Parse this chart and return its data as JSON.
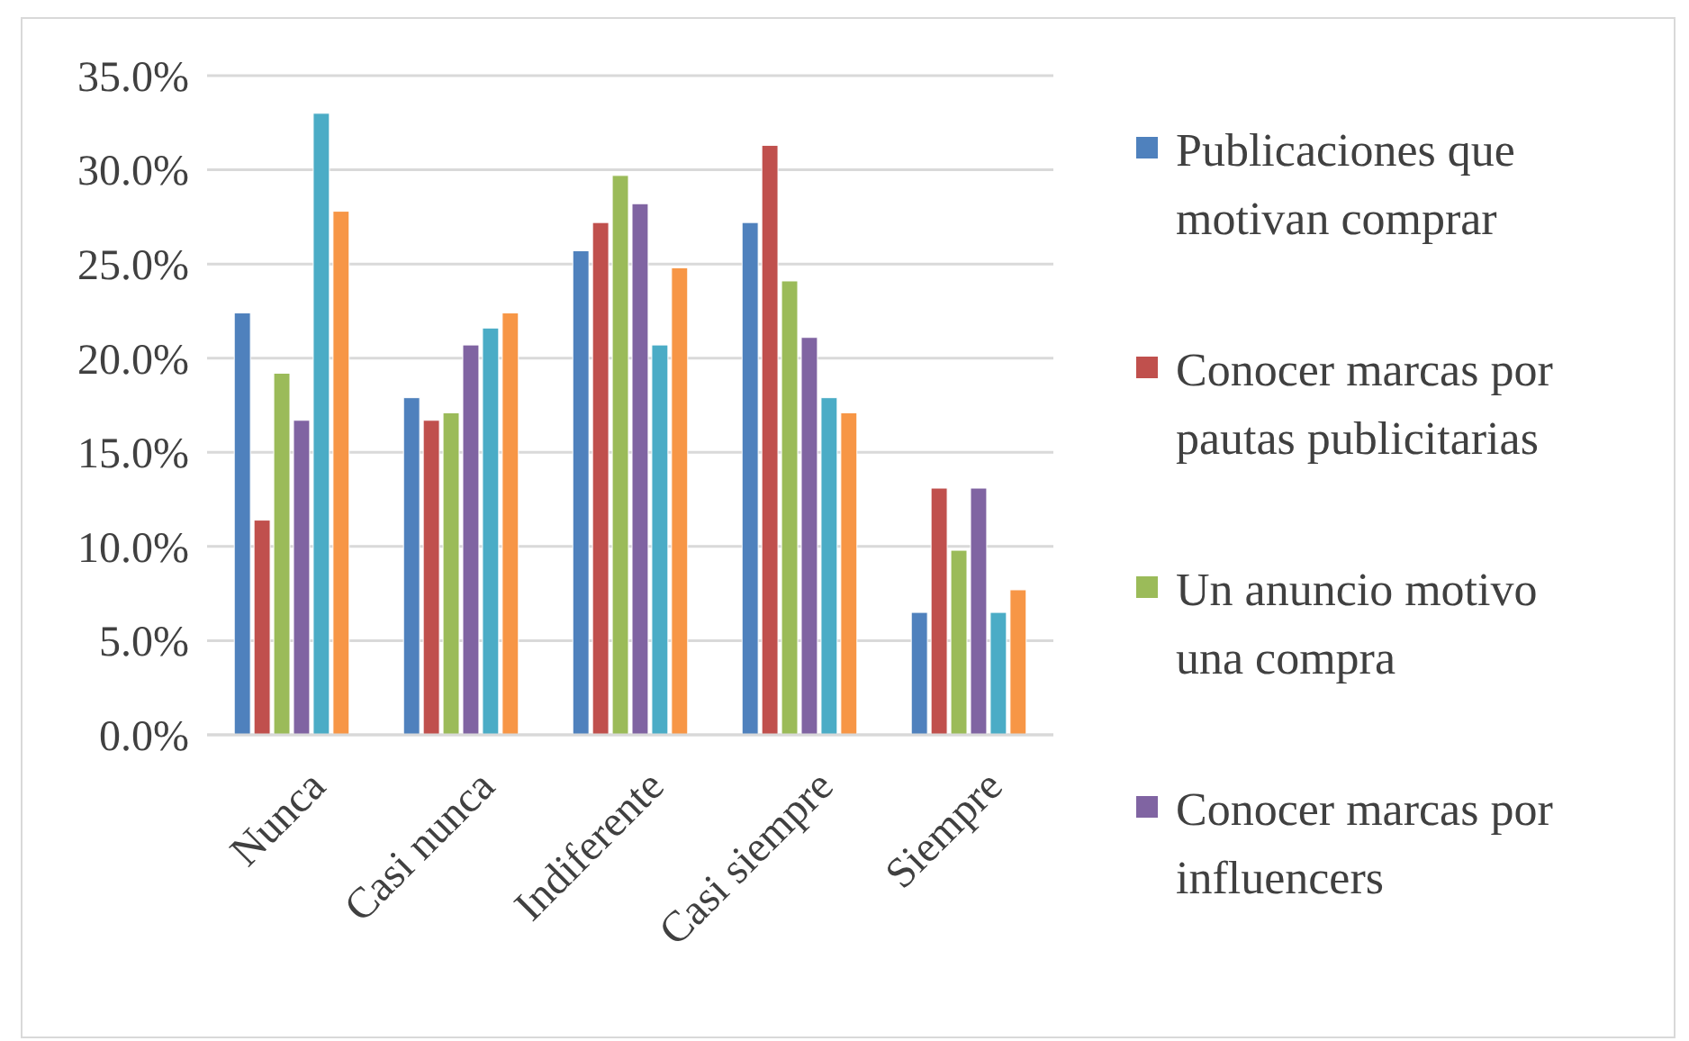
{
  "chart_data": {
    "type": "bar",
    "categories": [
      "Nunca",
      "Casi nunca",
      "Indiferente",
      "Casi siempre",
      "Siempre"
    ],
    "series": [
      {
        "name": "Publicaciones que motivan comprar",
        "color": "#4f81bd",
        "values": [
          22.4,
          17.9,
          25.7,
          27.2,
          6.5
        ]
      },
      {
        "name": "Conocer marcas por pautas publicitarias",
        "color": "#c0504d",
        "values": [
          11.4,
          16.7,
          27.2,
          31.3,
          13.1
        ]
      },
      {
        "name": "Un anuncio motivo una compra",
        "color": "#9bbb59",
        "values": [
          19.2,
          17.1,
          29.7,
          24.1,
          9.8
        ]
      },
      {
        "name": "Conocer marcas por influencers",
        "color": "#8064a2",
        "values": [
          16.7,
          20.7,
          28.2,
          21.1,
          13.1
        ]
      },
      {
        "color": "#4bacc6",
        "values": [
          33.0,
          21.6,
          20.7,
          17.9,
          6.5
        ]
      },
      {
        "color": "#f79646",
        "values": [
          27.8,
          22.4,
          24.8,
          17.1,
          7.7
        ]
      }
    ],
    "ylim": [
      0,
      35
    ],
    "yticks": [
      {
        "value": 0,
        "label": "0.0%"
      },
      {
        "value": 5,
        "label": "5.0%"
      },
      {
        "value": 10,
        "label": "10.0%"
      },
      {
        "value": 15,
        "label": "15.0%"
      },
      {
        "value": 20,
        "label": "20.0%"
      },
      {
        "value": 25,
        "label": "25.0%"
      },
      {
        "value": 30,
        "label": "30.0%"
      },
      {
        "value": 35,
        "label": "35.0%"
      }
    ],
    "grid": "y",
    "legend": "right"
  }
}
